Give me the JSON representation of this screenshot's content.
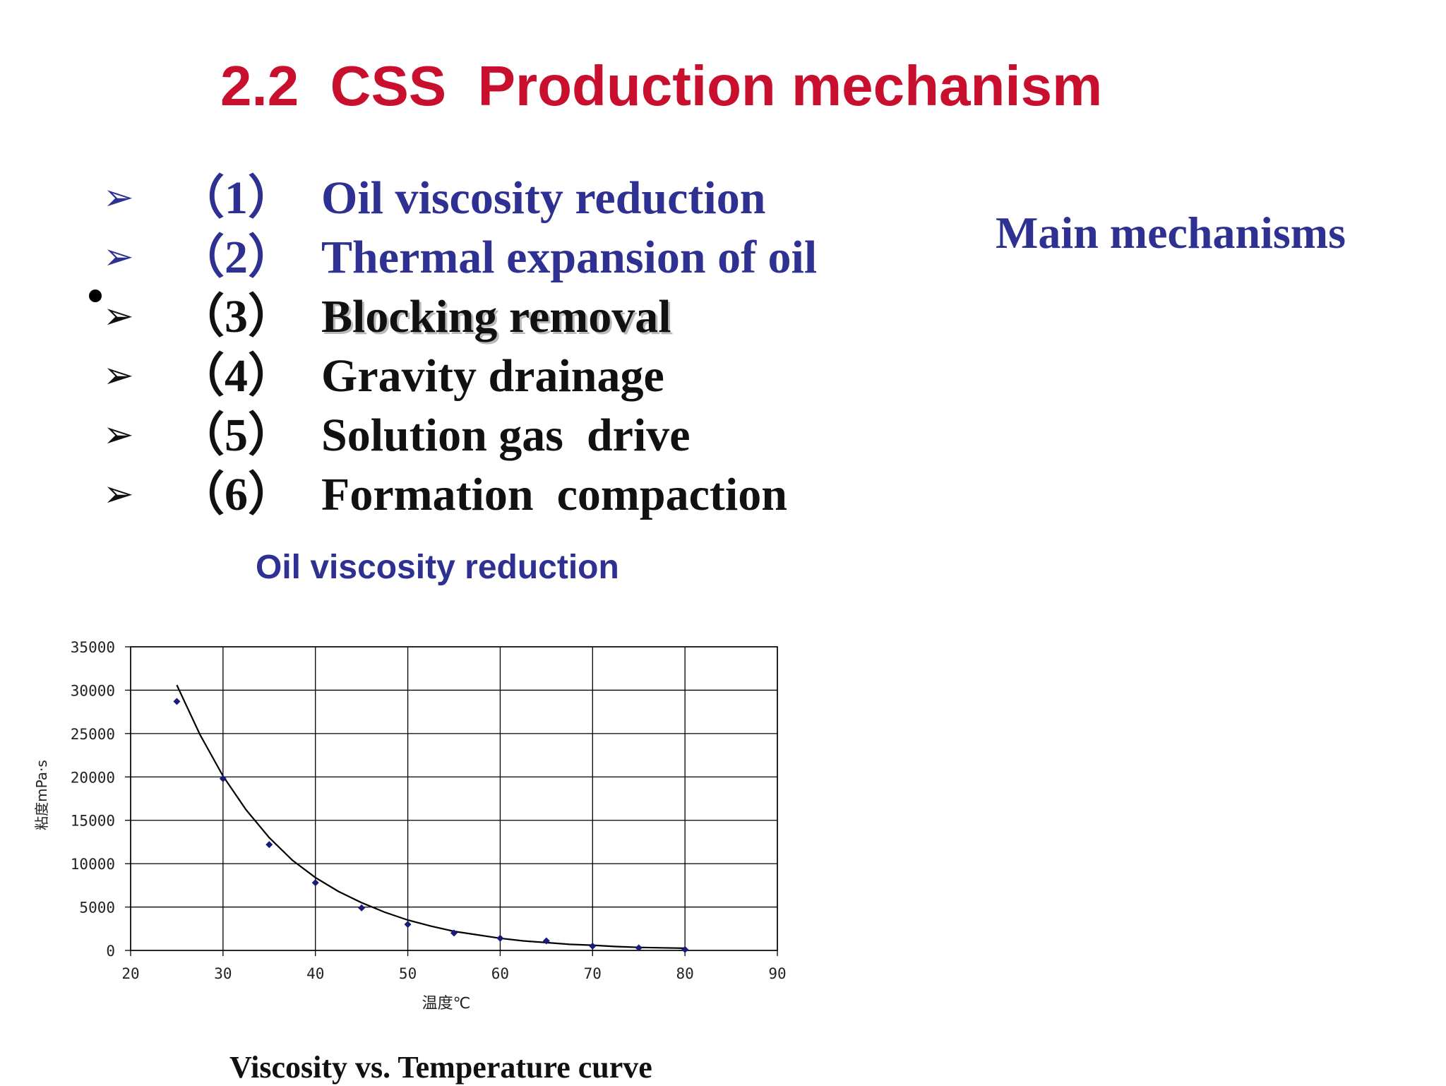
{
  "title": "2.2  CSS  Production mechanism",
  "mechanisms": [
    {
      "arrow": "➢",
      "num": "（1）",
      "label": "Oil viscosity reduction"
    },
    {
      "arrow": "➢",
      "num": "（2）",
      "label": "Thermal expansion of oil"
    },
    {
      "arrow": "➢",
      "num": "（3）",
      "label": "Blocking removal"
    },
    {
      "arrow": "➢",
      "num": "（4）",
      "label": "Gravity drainage"
    },
    {
      "arrow": "➢",
      "num": "（5）",
      "label": "Solution gas  drive"
    },
    {
      "arrow": "➢",
      "num": "（6）",
      "label": "Formation  compaction"
    }
  ],
  "side_note": "Main mechanisms",
  "chart_heading": "Oil viscosity reduction",
  "chart_caption": "Viscosity vs. Temperature curve",
  "colors": {
    "title": "#c8102e",
    "accent_blue": "#2e3192",
    "marker": "#1a1a7a"
  },
  "chart_data": {
    "type": "scatter",
    "xlabel": "温度℃",
    "ylabel": "粘度mPa·s",
    "xlim": [
      20,
      90
    ],
    "ylim": [
      0,
      35000
    ],
    "x_ticks": [
      20,
      30,
      40,
      50,
      60,
      70,
      80,
      90
    ],
    "y_ticks": [
      0,
      5000,
      10000,
      15000,
      20000,
      25000,
      30000,
      35000
    ],
    "grid": true,
    "series": [
      {
        "x": [
          25,
          30,
          35,
          40,
          45,
          50,
          55,
          60,
          65,
          70,
          75,
          80
        ],
        "values": [
          28700,
          19800,
          12200,
          7800,
          4900,
          3000,
          2000,
          1400,
          1100,
          500,
          300,
          100
        ]
      }
    ],
    "trendline": {
      "x": [
        25,
        27.5,
        30,
        32.5,
        35,
        37.5,
        40,
        42.5,
        45,
        47.5,
        50,
        52.5,
        55,
        57.5,
        60,
        62.5,
        65,
        67.5,
        70,
        72.5,
        75,
        77.5,
        80
      ],
      "values": [
        30600,
        24900,
        20100,
        16200,
        13000,
        10400,
        8400,
        6800,
        5500,
        4400,
        3500,
        2800,
        2200,
        1800,
        1400,
        1100,
        900,
        700,
        600,
        450,
        350,
        300,
        250
      ]
    }
  }
}
